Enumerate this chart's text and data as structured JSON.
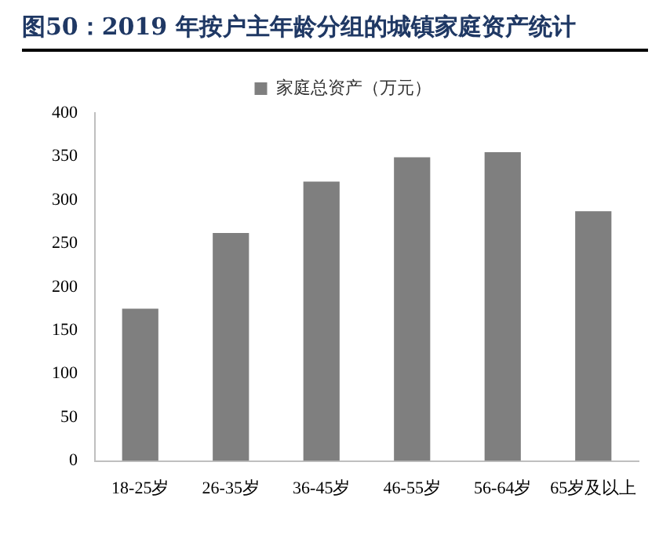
{
  "chart_data": {
    "type": "bar",
    "title": "图50：2019 年按户主年龄分组的城镇家庭资产统计",
    "categories": [
      "18-25岁",
      "26-35岁",
      "36-45岁",
      "46-55岁",
      "56-64岁",
      "65岁及以上"
    ],
    "series": [
      {
        "name": "家庭总资产（万元）",
        "color": "#7f7f7f",
        "values": [
          175,
          262,
          321,
          349,
          355,
          287
        ]
      }
    ],
    "ylim": [
      0,
      400
    ],
    "yticks": [
      0,
      50,
      100,
      150,
      200,
      250,
      300,
      350,
      400
    ],
    "grid": false,
    "legend": "top"
  }
}
